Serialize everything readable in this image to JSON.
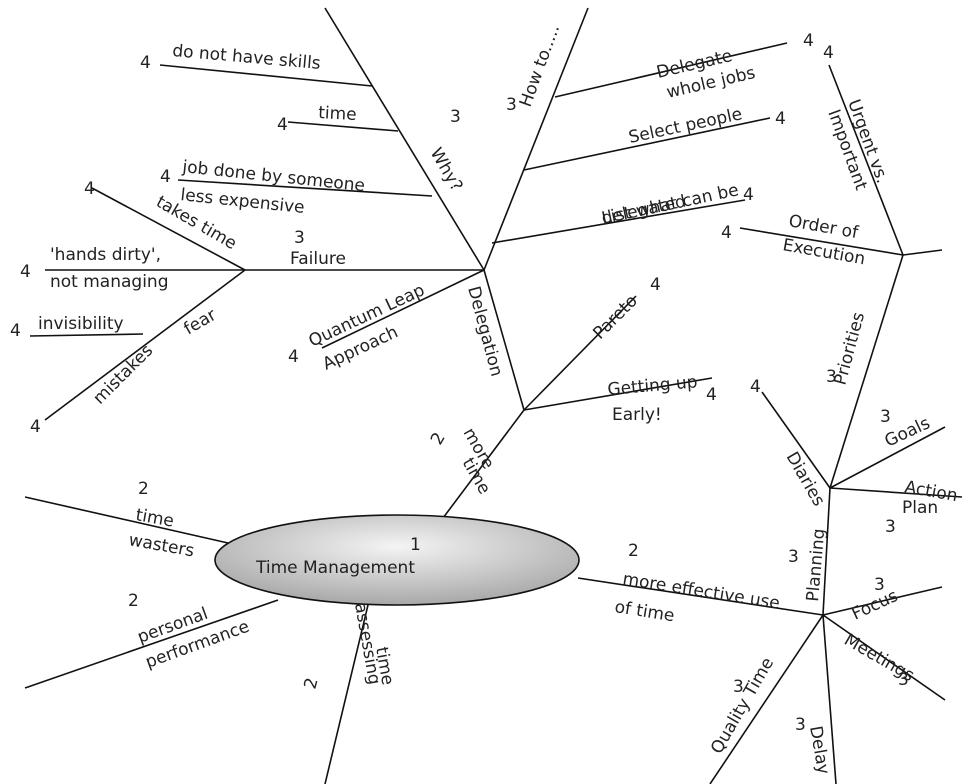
{
  "center": {
    "level": 1,
    "label": "Time Management"
  },
  "nodes": [
    {
      "label": [
        "do not have skills"
      ],
      "level": 4
    },
    {
      "label": [
        "Why?"
      ],
      "level": 3
    },
    {
      "label": [
        "time"
      ],
      "level": 4
    },
    {
      "label": [
        "job done by someone",
        "less expensive"
      ],
      "level": 4
    },
    {
      "label": [
        "takes time"
      ],
      "level": 4
    },
    {
      "label": [
        "Failure"
      ],
      "level": 3
    },
    {
      "label": [
        "'hands dirty',",
        "not managing"
      ],
      "level": 4
    },
    {
      "label": [
        "invisibility"
      ],
      "level": 4
    },
    {
      "label": [
        "fear"
      ]
    },
    {
      "label": [
        "mistakes"
      ],
      "level": 4
    },
    {
      "label": [
        "Quantum Leap",
        "Approach"
      ],
      "level": 4
    },
    {
      "label": [
        "Delegation"
      ]
    },
    {
      "label": [
        "How to....."
      ],
      "level": 3
    },
    {
      "label": [
        "Delegate",
        "whole jobs"
      ],
      "level": 4
    },
    {
      "label": [
        "Select people"
      ],
      "level": 4
    },
    {
      "label": [
        "List what can be",
        "delegated"
      ],
      "level": 4
    },
    {
      "label": [
        "Urgent vs.",
        "Important"
      ],
      "level": 4
    },
    {
      "label": [
        "Order of",
        "Execution"
      ],
      "level": 4
    },
    {
      "label": [
        "Pareto"
      ],
      "level": 4
    },
    {
      "label": [
        "Getting up",
        "Early!"
      ],
      "level": 4
    },
    {
      "label": [
        "more",
        "time"
      ],
      "level": 2
    },
    {
      "label": [
        "Diaries"
      ],
      "level": 4
    },
    {
      "label": [
        "Priorities"
      ],
      "level": 3
    },
    {
      "label": [
        "Goals"
      ],
      "level": 3
    },
    {
      "label": [
        "Action",
        "Plan"
      ],
      "level": 3
    },
    {
      "label": [
        "Planning"
      ],
      "level": 3
    },
    {
      "label": [
        "Focus"
      ],
      "level": 3
    },
    {
      "label": [
        "Meetings"
      ],
      "level": 3
    },
    {
      "label": [
        "Quality Time"
      ],
      "level": 3
    },
    {
      "label": [
        "Delay"
      ],
      "level": 3
    },
    {
      "label": [
        "more effective use",
        "of time"
      ],
      "level": 2
    },
    {
      "label": [
        "time",
        "wasters"
      ],
      "level": 2
    },
    {
      "label": [
        "personal",
        "performance"
      ],
      "level": 2
    },
    {
      "label": [
        "assessing",
        "time"
      ],
      "level": 2
    }
  ]
}
